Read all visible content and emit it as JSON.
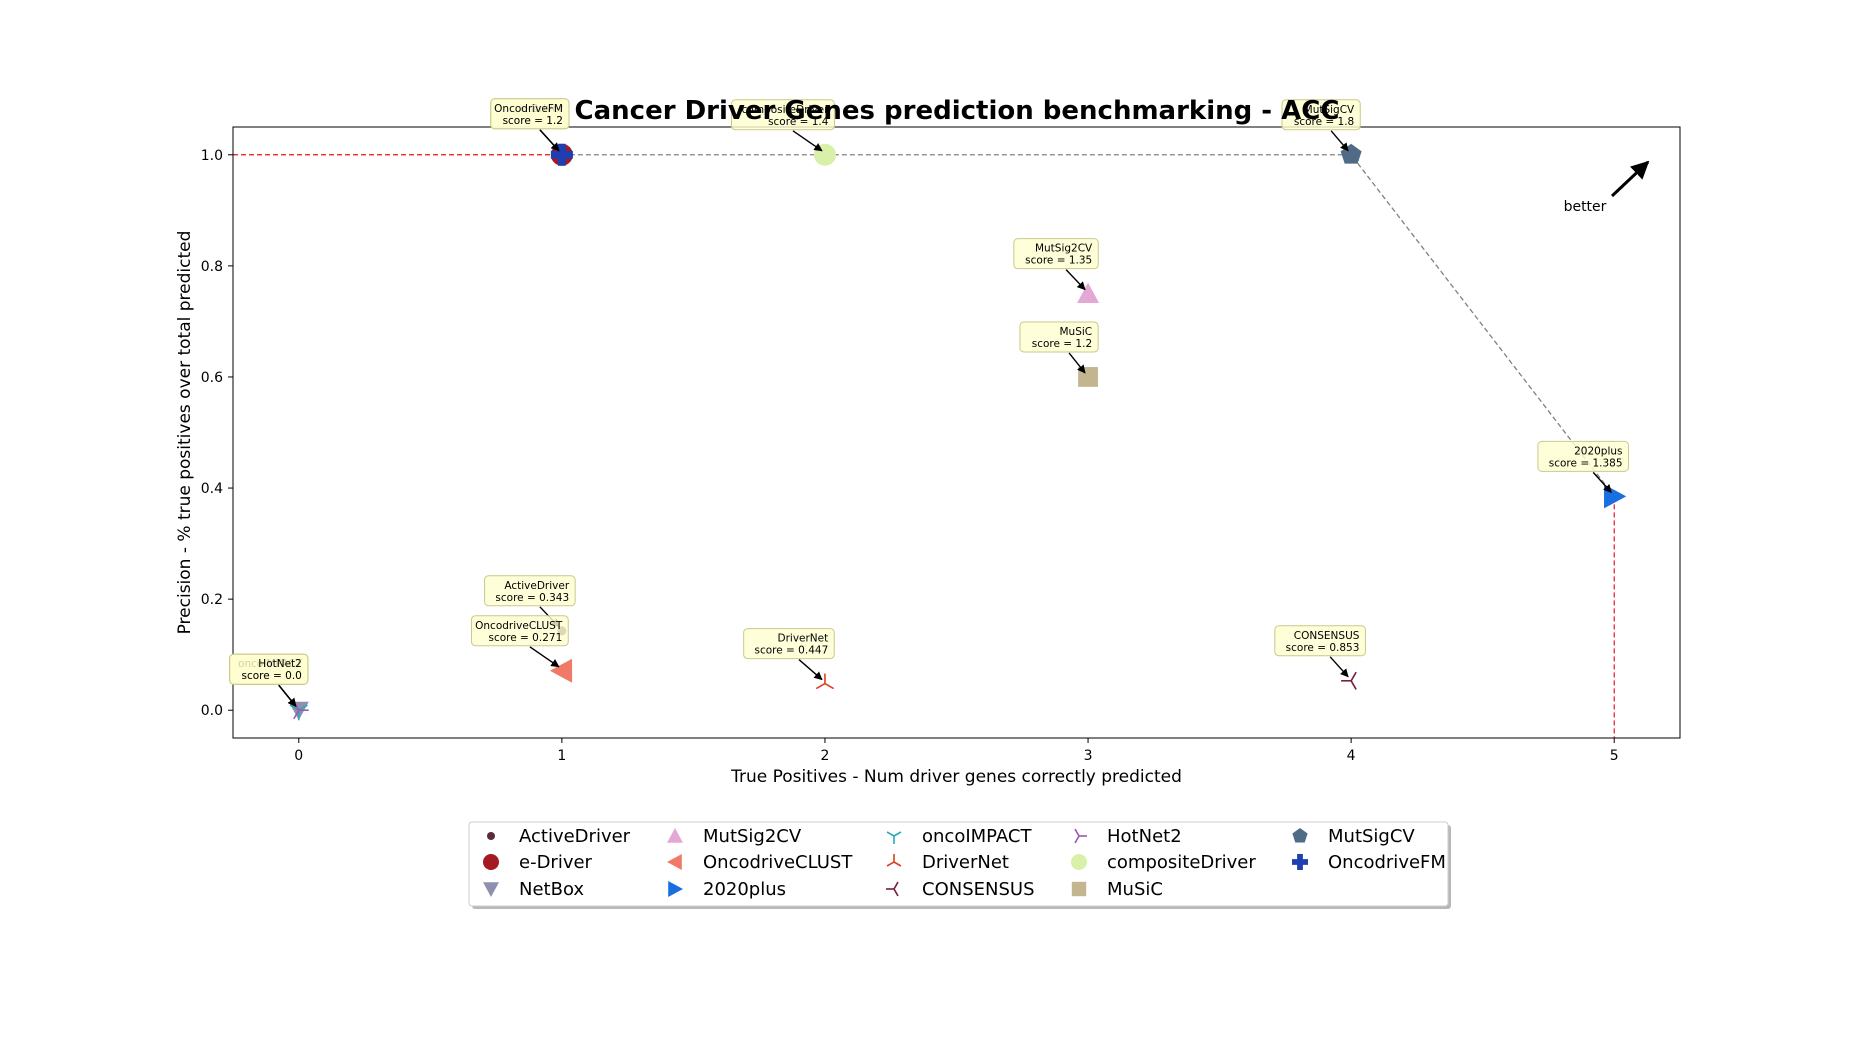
{
  "chart_data": {
    "type": "scatter",
    "title": "Cancer Driver Genes prediction benchmarking - ACC",
    "xlabel": "True Positives - Num driver genes correctly predicted",
    "ylabel": "Precision - % true positives over total predicted",
    "xlim": [
      -0.25,
      5.25
    ],
    "ylim": [
      -0.05,
      1.05
    ],
    "xticks": [
      0,
      1,
      2,
      3,
      4,
      5
    ],
    "yticks": [
      0.0,
      0.2,
      0.4,
      0.6,
      0.8,
      1.0
    ],
    "grid": false,
    "legend_position": "bottom-center",
    "better_label": "better",
    "series": [
      {
        "name": "ActiveDriver",
        "x": 1,
        "y": 0.143,
        "score_label": "score = 0.343",
        "marker": "dot",
        "color": "#5b2a3e"
      },
      {
        "name": "e-Driver",
        "x": 1,
        "y": 1.0,
        "score_label": "score = 1.2",
        "marker": "circle",
        "color": "#a51a22"
      },
      {
        "name": "NetBox",
        "x": 0,
        "y": 0.0,
        "score_label": "score = 0.0",
        "marker": "triangle-down",
        "color": "#8f8fb0"
      },
      {
        "name": "MutSig2CV",
        "x": 3,
        "y": 0.75,
        "score_label": "score = 1.35",
        "marker": "triangle-up",
        "color": "#e3a8d6"
      },
      {
        "name": "OncodriveCLUST",
        "x": 1,
        "y": 0.071,
        "score_label": "score = 0.271",
        "marker": "triangle-left",
        "color": "#f07a68"
      },
      {
        "name": "2020plus",
        "x": 5,
        "y": 0.385,
        "score_label": "score = 1.385",
        "marker": "triangle-right",
        "color": "#1a6fe0"
      },
      {
        "name": "oncoIMPACT",
        "x": 0,
        "y": 0.0,
        "score_label": "score = 0.0",
        "marker": "tri-down",
        "color": "#27aab5"
      },
      {
        "name": "DriverNet",
        "x": 2,
        "y": 0.048,
        "score_label": "score = 0.447",
        "marker": "tri-up",
        "color": "#d9421c"
      },
      {
        "name": "CONSENSUS",
        "x": 4,
        "y": 0.053,
        "score_label": "score = 0.853",
        "marker": "tri-left",
        "color": "#7a1e3c"
      },
      {
        "name": "HotNet2",
        "x": 0,
        "y": 0.0,
        "score_label": "score = 0.0",
        "marker": "tri-right",
        "color": "#9b59b6"
      },
      {
        "name": "compositeDriver",
        "x": 2,
        "y": 1.0,
        "score_label": "score = 1.4",
        "marker": "circle",
        "color": "#d8f0a8"
      },
      {
        "name": "MuSiC",
        "x": 3,
        "y": 0.6,
        "score_label": "score = 1.2",
        "marker": "square",
        "color": "#c2b590"
      },
      {
        "name": "MutSigCV",
        "x": 4,
        "y": 1.0,
        "score_label": "score = 1.8",
        "marker": "pentagon",
        "color": "#4f6b85"
      },
      {
        "name": "OncodriveFM",
        "x": 1,
        "y": 1.0,
        "score_label": "score = 1.2",
        "marker": "plus",
        "color": "#1f3fb0"
      }
    ],
    "pareto_frontier": [
      [
        1,
        1.0
      ],
      [
        2,
        1.0
      ],
      [
        4,
        1.0
      ],
      [
        5,
        0.385
      ]
    ],
    "frontier_color": "#808080",
    "reference_color": "#e8141c"
  }
}
